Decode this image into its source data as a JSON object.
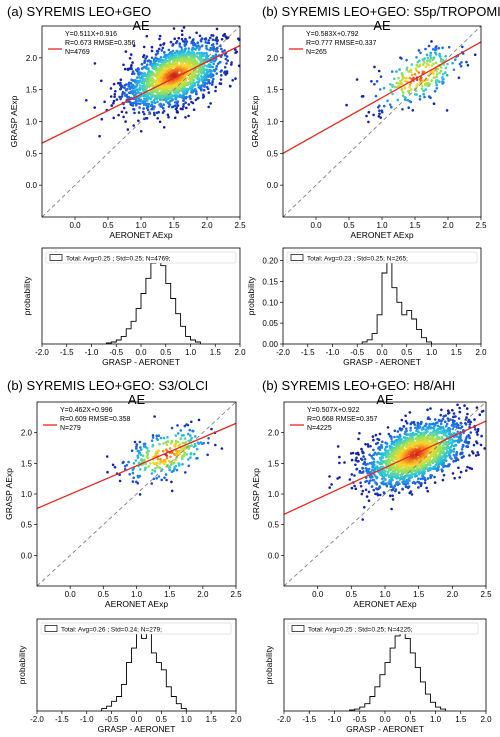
{
  "colors": {
    "fit_line": "#e8261d",
    "identity_line": "#808080",
    "density_low": "#1a2cb8",
    "density_high": "#d7301f",
    "hist_line": "#000000"
  },
  "chart_data": [
    {
      "type": "scatter",
      "title_line1": "(a)  SYREMIS LEO+GEO",
      "title_line2": "AE",
      "xlabel": "AERONET AExp",
      "ylabel": "GRASP AExp",
      "xlim": [
        -0.5,
        2.5
      ],
      "ylim": [
        -0.5,
        2.5
      ],
      "xticks": [
        0.0,
        0.5,
        1.0,
        1.5,
        2.0,
        2.5
      ],
      "yticks": [
        0.0,
        0.5,
        1.0,
        1.5,
        2.0
      ],
      "fit": {
        "slope": 0.511,
        "intercept": 0.916
      },
      "stats": [
        "Y=0.511X+0.916",
        "R=0.673  RMSE=0.356",
        "N=4769"
      ],
      "n": 4769,
      "cloud": {
        "cx": 1.5,
        "cy": 1.72,
        "sx": 0.38,
        "sy": 0.3,
        "corr": 0.5
      },
      "grid": false
    },
    {
      "type": "scatter",
      "title_line1": "(b)  SYREMIS LEO+GEO: S5p/TROPOMI",
      "title_line2": "AE",
      "xlabel": "AERONET AExp",
      "ylabel": "GRASP AExp",
      "xlim": [
        -0.5,
        2.5
      ],
      "ylim": [
        -0.5,
        2.5
      ],
      "xticks": [
        0.0,
        0.5,
        1.0,
        1.5,
        2.0,
        2.5
      ],
      "yticks": [
        0.0,
        0.5,
        1.0,
        1.5,
        2.0
      ],
      "fit": {
        "slope": 0.583,
        "intercept": 0.792
      },
      "stats": [
        "Y=0.583X+0.792",
        "R=0.777  RMSE=0.337",
        "N=265"
      ],
      "n": 265,
      "cloud": {
        "cx": 1.55,
        "cy": 1.7,
        "sx": 0.35,
        "sy": 0.28,
        "corr": 0.6
      },
      "grid": false
    },
    {
      "type": "bar",
      "subtype": "histogram",
      "legend": "Total: Avg=0.25 ; Std=0.25; N=4769;",
      "xlabel": "GRASP - AERONET",
      "ylabel": "probability",
      "xlim": [
        -2.0,
        2.0
      ],
      "ylim": [
        0,
        0.19
      ],
      "xticks": [
        -2.0,
        -1.5,
        -1.0,
        -0.5,
        0.0,
        0.5,
        1.0,
        1.5,
        2.0
      ],
      "yticks": [],
      "bin_width": 0.1,
      "bin_start": -0.7,
      "values": [
        0.002,
        0.004,
        0.008,
        0.015,
        0.03,
        0.045,
        0.07,
        0.1,
        0.13,
        0.16,
        0.17,
        0.155,
        0.12,
        0.09,
        0.06,
        0.035,
        0.015,
        0.008,
        0.004
      ]
    },
    {
      "type": "bar",
      "subtype": "histogram",
      "legend": "Total: Avg=0.23 ; Std=0.25; N=265;",
      "xlabel": "GRASP - AERONET",
      "ylabel": "probability",
      "xlim": [
        -2.0,
        2.0
      ],
      "ylim": [
        0,
        0.23
      ],
      "xticks": [
        -2.0,
        -1.5,
        -1.0,
        -0.5,
        0.0,
        0.5,
        1.0,
        1.5,
        2.0
      ],
      "yticks": [
        0.0,
        0.05,
        0.1,
        0.15,
        0.2
      ],
      "bin_width": 0.1,
      "bin_start": -0.4,
      "values": [
        0.005,
        0.01,
        0.025,
        0.07,
        0.17,
        0.2,
        0.135,
        0.1,
        0.07,
        0.08,
        0.06,
        0.035,
        0.015,
        0.005
      ]
    },
    {
      "type": "scatter",
      "title_line1": "(b)  SYREMIS LEO+GEO: S3/OLCI",
      "title_line2": "AE",
      "xlabel": "AERONET AExp",
      "ylabel": "GRASP AExp",
      "xlim": [
        -0.5,
        2.5
      ],
      "ylim": [
        -0.5,
        2.5
      ],
      "xticks": [
        0.0,
        0.5,
        1.0,
        1.5,
        2.0,
        2.5
      ],
      "yticks": [
        0.0,
        0.5,
        1.0,
        1.5,
        2.0
      ],
      "fit": {
        "slope": 0.462,
        "intercept": 0.996
      },
      "stats": [
        "Y=0.462X+0.996",
        "R=0.609  RMSE=0.358",
        "N=279"
      ],
      "n": 279,
      "cloud": {
        "cx": 1.45,
        "cy": 1.65,
        "sx": 0.33,
        "sy": 0.25,
        "corr": 0.5
      },
      "grid": false
    },
    {
      "type": "scatter",
      "title_line1": "(b)  SYREMIS LEO+GEO: H8/AHI",
      "title_line2": "AE",
      "xlabel": "AERONET AExp",
      "ylabel": "GRASP AExp",
      "xlim": [
        -0.5,
        2.5
      ],
      "ylim": [
        -0.5,
        2.5
      ],
      "xticks": [
        0.0,
        0.5,
        1.0,
        1.5,
        2.0,
        2.5
      ],
      "yticks": [
        0.0,
        0.5,
        1.0,
        1.5,
        2.0
      ],
      "fit": {
        "slope": 0.507,
        "intercept": 0.922
      },
      "stats": [
        "Y=0.507X+0.922",
        "R=0.668  RMSE=0.357",
        "N=4225"
      ],
      "n": 4225,
      "cloud": {
        "cx": 1.45,
        "cy": 1.65,
        "sx": 0.4,
        "sy": 0.32,
        "corr": 0.5
      },
      "grid": false
    },
    {
      "type": "bar",
      "subtype": "histogram",
      "legend": "Total: Avg=0.26 ; Std=0.24; N=279;",
      "xlabel": "GRASP - AERONET",
      "ylabel": "probability",
      "xlim": [
        -2.0,
        2.0
      ],
      "ylim": [
        0,
        0.19
      ],
      "xticks": [
        -2.0,
        -1.5,
        -1.0,
        -0.5,
        0.0,
        0.5,
        1.0,
        1.5,
        2.0
      ],
      "yticks": [],
      "bin_width": 0.1,
      "bin_start": -0.7,
      "values": [
        0.005,
        0.01,
        0.02,
        0.03,
        0.055,
        0.1,
        0.13,
        0.165,
        0.15,
        0.16,
        0.12,
        0.1,
        0.085,
        0.05,
        0.03,
        0.015,
        0.005
      ]
    },
    {
      "type": "bar",
      "subtype": "histogram",
      "legend": "Total: Avg=0.25 ; Std=0.25; N=4225;",
      "xlabel": "GRASP - AERONET",
      "ylabel": "probability",
      "xlim": [
        -2.0,
        2.0
      ],
      "ylim": [
        0,
        0.19
      ],
      "xticks": [
        -2.0,
        -1.5,
        -1.0,
        -0.5,
        0.0,
        0.5,
        1.0,
        1.5,
        2.0
      ],
      "yticks": [],
      "bin_width": 0.1,
      "bin_start": -0.7,
      "values": [
        0.002,
        0.004,
        0.008,
        0.015,
        0.03,
        0.05,
        0.075,
        0.1,
        0.13,
        0.155,
        0.165,
        0.15,
        0.12,
        0.09,
        0.06,
        0.035,
        0.018,
        0.008,
        0.004
      ]
    }
  ]
}
